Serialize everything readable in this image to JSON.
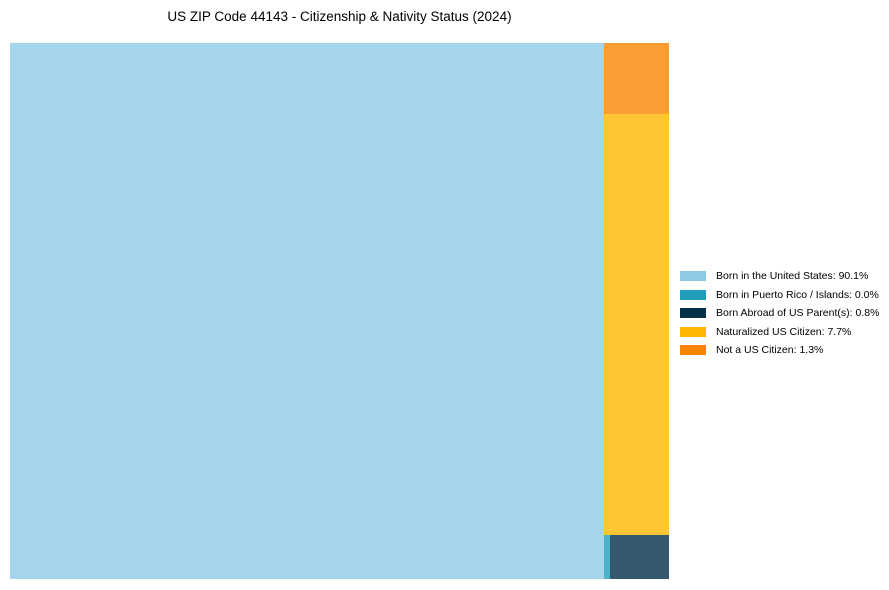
{
  "chart_data": {
    "type": "treemap",
    "title": "US ZIP Code 44143 - Citizenship & Nativity Status (2024)",
    "legend_position": "right",
    "series": [
      {
        "name": "Born in the United States",
        "value": 90.1,
        "label": "Born in the United States: 90.1%",
        "color": "#8ecae6"
      },
      {
        "name": "Born in Puerto Rico / Islands",
        "value": 0.0,
        "label": "Born in Puerto Rico / Islands: 0.0%",
        "color": "#219ebc"
      },
      {
        "name": "Born Abroad of US Parent(s)",
        "value": 0.8,
        "label": "Born Abroad of US Parent(s): 0.8%",
        "color": "#023047"
      },
      {
        "name": "Naturalized US Citizen",
        "value": 7.7,
        "label": "Naturalized US Citizen: 7.7%",
        "color": "#ffb703"
      },
      {
        "name": "Not a US Citizen",
        "value": 1.3,
        "label": "Not a US Citizen: 1.3%",
        "color": "#fb8500"
      }
    ]
  }
}
